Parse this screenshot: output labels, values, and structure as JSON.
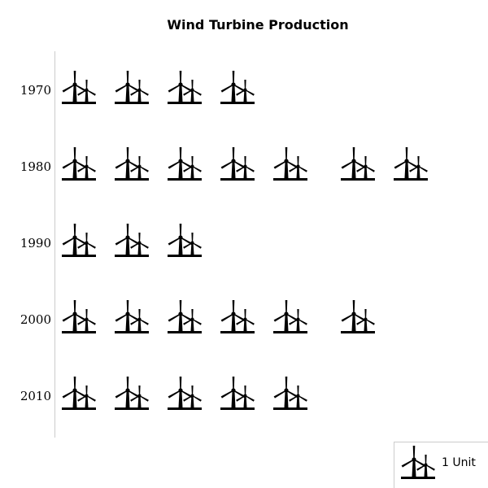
{
  "chart_data": {
    "type": "pictograph",
    "title": "Wind Turbine Production",
    "icon": "wind-turbine-icon",
    "unit_label": "1 Unit",
    "unit_value": 1,
    "categories": [
      "1970",
      "1980",
      "1990",
      "2000",
      "2010"
    ],
    "values": [
      4,
      7,
      3,
      6,
      5
    ],
    "legend_position": "bottom-right",
    "colors": {
      "icon": "#000000",
      "axis": "#cccccc",
      "legend_border": "#cccccc"
    }
  }
}
